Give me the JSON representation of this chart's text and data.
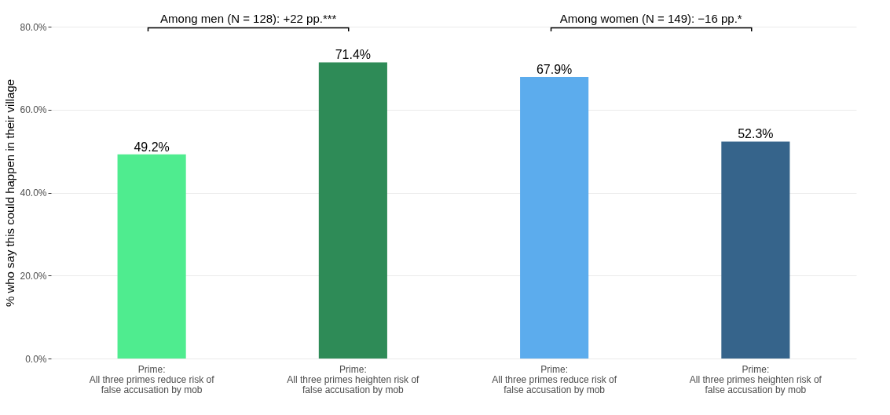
{
  "chart_data": {
    "type": "bar",
    "ylabel": "% who say this could happen in their village",
    "categories": [
      "Prime:\nAll three primes reduce risk of\nfalse accusation by mob",
      "Prime:\nAll three primes heighten risk of\nfalse accusation by mob",
      "Prime:\nAll three primes reduce risk of\nfalse accusation by mob",
      "Prime:\nAll three primes heighten risk of\nfalse accusation by mob"
    ],
    "values": [
      49.2,
      71.4,
      67.9,
      52.3
    ],
    "colors": [
      "#4fec8f",
      "#2e8b57",
      "#5caced",
      "#36648b"
    ],
    "value_labels": [
      "49.2%",
      "71.4%",
      "67.9%",
      "52.3%"
    ],
    "ylim": [
      0,
      80
    ],
    "yticks": [
      {
        "value": 0,
        "label": "0.0%"
      },
      {
        "value": 20,
        "label": "20.0%"
      },
      {
        "value": 40,
        "label": "40.0%"
      },
      {
        "value": 60,
        "label": "60.0%"
      },
      {
        "value": 80,
        "label": "80.0%"
      }
    ],
    "grid": "y",
    "annotations": [
      "Among men (N = 128): +22 pp.***",
      "Among women (N = 149): −16 pp.*"
    ]
  }
}
